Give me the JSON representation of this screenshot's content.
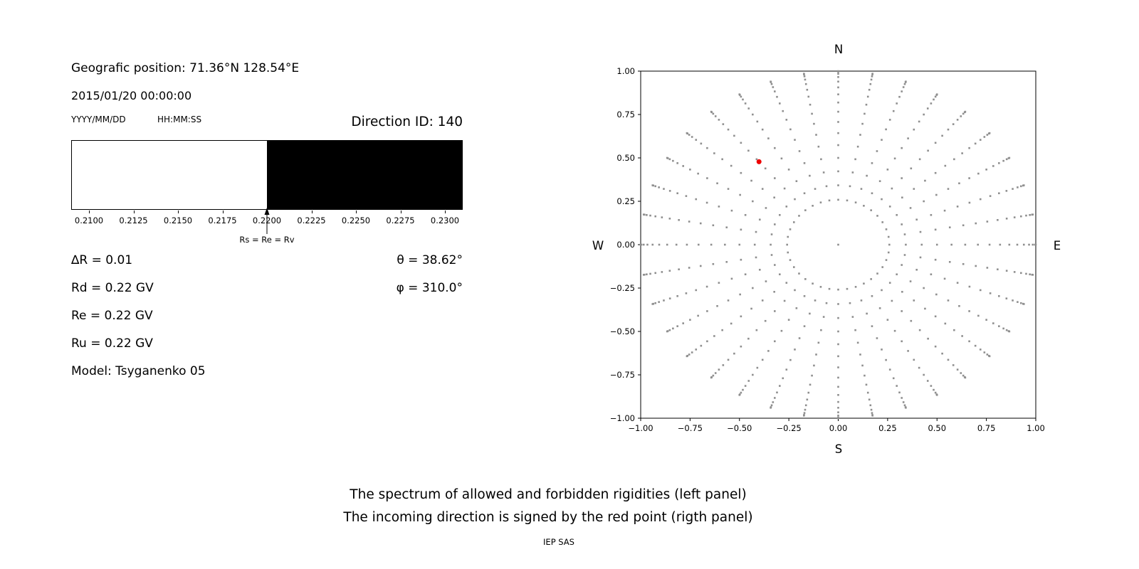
{
  "header": {
    "position": "Geografic position: 71.36°N 128.54°E",
    "datetime": "2015/01/20 00:00:00",
    "date_format_label": "YYYY/MM/DD",
    "time_format_label": "HH:MM:SS",
    "direction_id": "Direction ID: 140"
  },
  "params": {
    "delta_r": "∆R = 0.01",
    "rd": "Rd = 0.22 GV",
    "re": "Re = 0.22 GV",
    "ru": "Ru = 0.22 GV",
    "model": "Model: Tsyganenko 05",
    "theta": "θ = 38.62°",
    "phi": "φ = 310.0°"
  },
  "chart_data": [
    {
      "type": "bar",
      "panel": "rigidity-spectrum",
      "title": "",
      "x_range": [
        0.209,
        0.231
      ],
      "xtick_values": [
        0.21,
        0.2125,
        0.215,
        0.2175,
        0.22,
        0.2225,
        0.225,
        0.2275,
        0.23
      ],
      "xtick_labels": [
        "0.2100",
        "0.2125",
        "0.2150",
        "0.2175",
        "0.2200",
        "0.2225",
        "0.2250",
        "0.2275",
        "0.2300"
      ],
      "regions": [
        {
          "label": "allowed rigidities",
          "from": 0.209,
          "to": 0.22,
          "color": "#ffffff"
        },
        {
          "label": "forbidden rigidities",
          "from": 0.22,
          "to": 0.231,
          "color": "#000000"
        }
      ],
      "annotation": {
        "text": "Rs = Re = Rv",
        "x": 0.22
      }
    },
    {
      "type": "scatter",
      "panel": "incoming-directions",
      "title": "",
      "xlim": [
        -1,
        1
      ],
      "ylim": [
        -1,
        1
      ],
      "xtick_values": [
        -1,
        -0.75,
        -0.5,
        -0.25,
        0,
        0.25,
        0.5,
        0.75,
        1
      ],
      "xtick_labels": [
        "−1.00",
        "−0.75",
        "−0.50",
        "−0.25",
        "0.00",
        "0.25",
        "0.50",
        "0.75",
        "1.00"
      ],
      "ytick_values": [
        1,
        0.75,
        0.5,
        0.25,
        0,
        -0.25,
        -0.5,
        -0.75,
        -1
      ],
      "ytick_labels": [
        "1.00",
        "0.75",
        "0.50",
        "0.25",
        "0.00",
        "−0.25",
        "−0.50",
        "−0.75",
        "−1.00"
      ],
      "compass": {
        "north": "N",
        "south": "S",
        "east": "E",
        "west": "W"
      },
      "direction_grid": {
        "description": "Grid of computed incoming directions: azimuth spokes every 10 deg, zenith 15-90 deg in 5 deg steps, plotted at r = sin(zenith)",
        "azimuth_start_deg": 0,
        "azimuth_step_deg": 10,
        "azimuth_count": 36,
        "zenith_deg": [
          15,
          20,
          25,
          30,
          35,
          40,
          45,
          50,
          55,
          60,
          65,
          70,
          75,
          80,
          85,
          90
        ],
        "projection": "r = sin(zenith)",
        "include_center_point": true,
        "dot_color": "#8f8f8f"
      },
      "selected_direction": {
        "theta_deg": 38.62,
        "phi_deg": 310.0,
        "x": -0.401,
        "y": 0.478,
        "color": "#ee0000"
      }
    }
  ],
  "caption": {
    "line1": "The spectrum of allowed and forbidden rigidities (left panel)",
    "line2": "The incoming direction is signed by the red point (rigth panel)",
    "credit": "IEP SAS"
  }
}
